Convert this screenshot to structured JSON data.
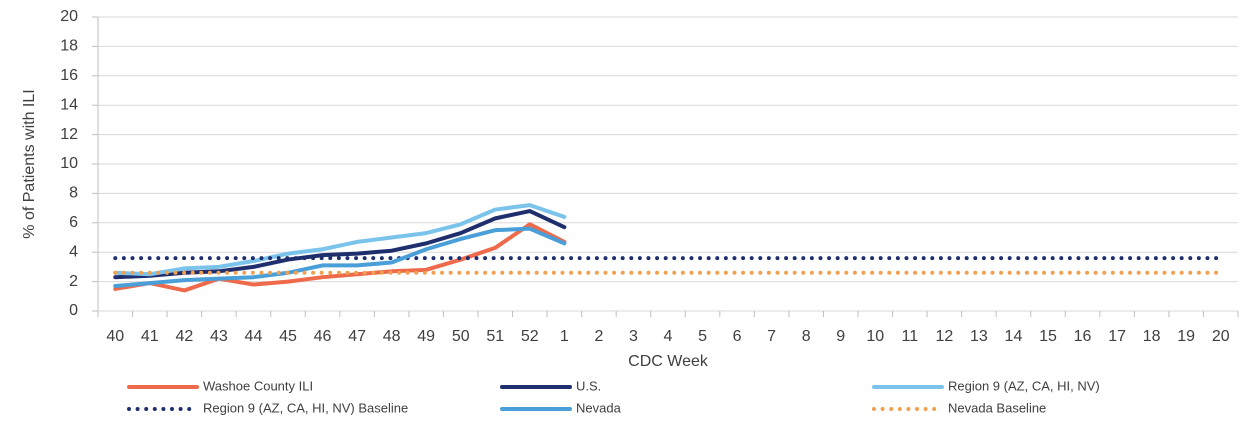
{
  "chart_data": {
    "type": "line",
    "x_label": "CDC Week",
    "y_label": "% of Patients with ILI",
    "categories": [
      "40",
      "41",
      "42",
      "43",
      "44",
      "45",
      "46",
      "47",
      "48",
      "49",
      "50",
      "51",
      "52",
      "1",
      "2",
      "3",
      "4",
      "5",
      "6",
      "7",
      "8",
      "9",
      "10",
      "11",
      "12",
      "13",
      "14",
      "15",
      "16",
      "17",
      "18",
      "19",
      "20"
    ],
    "ylim": [
      0,
      20
    ],
    "yticks": [
      0,
      2,
      4,
      6,
      8,
      10,
      12,
      14,
      16,
      18,
      20
    ],
    "grid": true,
    "legend": "bottom",
    "series": [
      {
        "name": "Washoe County ILI",
        "color": "#ee6a4a",
        "style": "solid",
        "values": [
          1.5,
          1.9,
          1.4,
          2.2,
          1.8,
          2.0,
          2.3,
          2.5,
          2.7,
          2.8,
          3.5,
          4.3,
          5.9,
          4.7,
          null,
          null,
          null,
          null,
          null,
          null,
          null,
          null,
          null,
          null,
          null,
          null,
          null,
          null,
          null,
          null,
          null,
          null,
          null
        ]
      },
      {
        "name": "U.S.",
        "color": "#1f2f6e",
        "style": "solid",
        "values": [
          2.3,
          2.4,
          2.6,
          2.7,
          3.0,
          3.5,
          3.8,
          3.9,
          4.1,
          4.6,
          5.3,
          6.3,
          6.8,
          5.7,
          null,
          null,
          null,
          null,
          null,
          null,
          null,
          null,
          null,
          null,
          null,
          null,
          null,
          null,
          null,
          null,
          null,
          null,
          null
        ]
      },
      {
        "name": "Region 9 (AZ, CA, HI, NV)",
        "color": "#7ac4ec",
        "style": "solid",
        "values": [
          2.6,
          2.5,
          2.9,
          3.0,
          3.4,
          3.9,
          4.2,
          4.7,
          5.0,
          5.3,
          5.9,
          6.9,
          7.2,
          6.4,
          null,
          null,
          null,
          null,
          null,
          null,
          null,
          null,
          null,
          null,
          null,
          null,
          null,
          null,
          null,
          null,
          null,
          null,
          null
        ]
      },
      {
        "name": "Region 9 (AZ, CA, HI, NV) Baseline",
        "color": "#1f2f6e",
        "style": "dotted",
        "values": [
          3.6,
          3.6,
          3.6,
          3.6,
          3.6,
          3.6,
          3.6,
          3.6,
          3.6,
          3.6,
          3.6,
          3.6,
          3.6,
          3.6,
          3.6,
          3.6,
          3.6,
          3.6,
          3.6,
          3.6,
          3.6,
          3.6,
          3.6,
          3.6,
          3.6,
          3.6,
          3.6,
          3.6,
          3.6,
          3.6,
          3.6,
          3.6,
          3.6
        ]
      },
      {
        "name": "Nevada",
        "color": "#4a9fd8",
        "style": "solid",
        "values": [
          1.7,
          1.9,
          2.1,
          2.2,
          2.3,
          2.6,
          3.1,
          3.1,
          3.3,
          4.2,
          4.9,
          5.5,
          5.6,
          4.6,
          null,
          null,
          null,
          null,
          null,
          null,
          null,
          null,
          null,
          null,
          null,
          null,
          null,
          null,
          null,
          null,
          null,
          null,
          null
        ]
      },
      {
        "name": "Nevada Baseline",
        "color": "#f0a050",
        "style": "dotted",
        "values": [
          2.6,
          2.6,
          2.6,
          2.6,
          2.6,
          2.6,
          2.6,
          2.6,
          2.6,
          2.6,
          2.6,
          2.6,
          2.6,
          2.6,
          2.6,
          2.6,
          2.6,
          2.6,
          2.6,
          2.6,
          2.6,
          2.6,
          2.6,
          2.6,
          2.6,
          2.6,
          2.6,
          2.6,
          2.6,
          2.6,
          2.6,
          2.6,
          2.6
        ]
      }
    ]
  }
}
